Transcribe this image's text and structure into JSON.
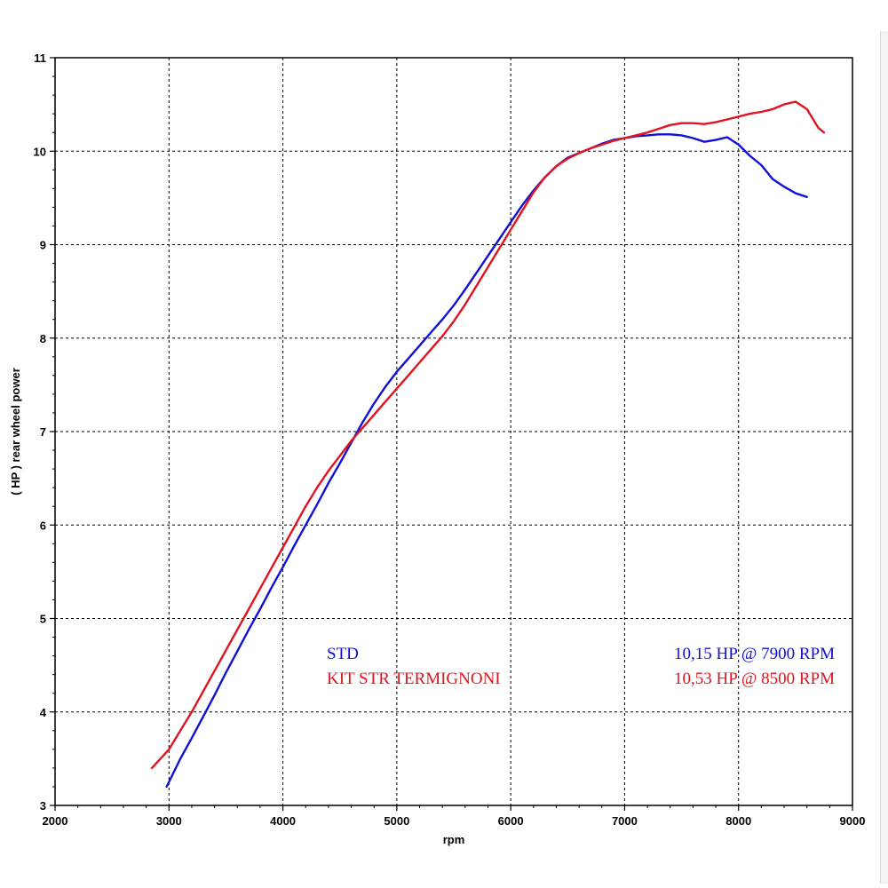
{
  "chart_data": {
    "type": "line",
    "xlabel": "rpm",
    "ylabel": "( HP )   rear wheel power",
    "xlim": [
      2000,
      9000
    ],
    "ylim": [
      3,
      11
    ],
    "x_ticks": [
      "2000",
      "3000",
      "4000",
      "5000",
      "6000",
      "7000",
      "8000",
      "9000"
    ],
    "y_ticks": [
      "3",
      "4",
      "5",
      "6",
      "7",
      "8",
      "9",
      "10",
      "11"
    ],
    "grid": true,
    "series": [
      {
        "name": "STD",
        "color": "#1010d8",
        "peak_label": "10,15 HP @ 7900 RPM",
        "points": [
          [
            2980,
            3.2
          ],
          [
            3100,
            3.5
          ],
          [
            3200,
            3.72
          ],
          [
            3300,
            3.95
          ],
          [
            3400,
            4.18
          ],
          [
            3500,
            4.42
          ],
          [
            3600,
            4.65
          ],
          [
            3700,
            4.88
          ],
          [
            3800,
            5.1
          ],
          [
            3900,
            5.33
          ],
          [
            4000,
            5.55
          ],
          [
            4100,
            5.78
          ],
          [
            4200,
            6.0
          ],
          [
            4300,
            6.22
          ],
          [
            4400,
            6.45
          ],
          [
            4500,
            6.66
          ],
          [
            4600,
            6.88
          ],
          [
            4700,
            7.1
          ],
          [
            4800,
            7.3
          ],
          [
            4900,
            7.48
          ],
          [
            5000,
            7.64
          ],
          [
            5100,
            7.78
          ],
          [
            5200,
            7.92
          ],
          [
            5300,
            8.06
          ],
          [
            5400,
            8.2
          ],
          [
            5500,
            8.35
          ],
          [
            5600,
            8.52
          ],
          [
            5700,
            8.7
          ],
          [
            5800,
            8.88
          ],
          [
            5900,
            9.06
          ],
          [
            6000,
            9.24
          ],
          [
            6100,
            9.42
          ],
          [
            6200,
            9.58
          ],
          [
            6300,
            9.72
          ],
          [
            6400,
            9.84
          ],
          [
            6500,
            9.93
          ],
          [
            6600,
            9.98
          ],
          [
            6700,
            10.03
          ],
          [
            6800,
            10.08
          ],
          [
            6900,
            10.12
          ],
          [
            7000,
            10.14
          ],
          [
            7100,
            10.16
          ],
          [
            7200,
            10.17
          ],
          [
            7300,
            10.18
          ],
          [
            7400,
            10.18
          ],
          [
            7500,
            10.17
          ],
          [
            7600,
            10.14
          ],
          [
            7700,
            10.1
          ],
          [
            7800,
            10.12
          ],
          [
            7900,
            10.15
          ],
          [
            8000,
            10.07
          ],
          [
            8100,
            9.95
          ],
          [
            8200,
            9.85
          ],
          [
            8300,
            9.7
          ],
          [
            8400,
            9.62
          ],
          [
            8500,
            9.55
          ],
          [
            8600,
            9.51
          ]
        ]
      },
      {
        "name": "KIT STR TERMIGNONI",
        "color": "#e0141e",
        "peak_label": "10,53 HP @ 8500 RPM",
        "points": [
          [
            2850,
            3.4
          ],
          [
            3000,
            3.6
          ],
          [
            3100,
            3.8
          ],
          [
            3200,
            4.0
          ],
          [
            3300,
            4.22
          ],
          [
            3400,
            4.44
          ],
          [
            3500,
            4.66
          ],
          [
            3600,
            4.88
          ],
          [
            3700,
            5.1
          ],
          [
            3800,
            5.32
          ],
          [
            3900,
            5.54
          ],
          [
            4000,
            5.76
          ],
          [
            4100,
            5.98
          ],
          [
            4200,
            6.2
          ],
          [
            4300,
            6.4
          ],
          [
            4400,
            6.58
          ],
          [
            4500,
            6.74
          ],
          [
            4600,
            6.9
          ],
          [
            4700,
            7.04
          ],
          [
            4800,
            7.18
          ],
          [
            4900,
            7.32
          ],
          [
            5000,
            7.46
          ],
          [
            5100,
            7.6
          ],
          [
            5200,
            7.74
          ],
          [
            5300,
            7.88
          ],
          [
            5400,
            8.02
          ],
          [
            5500,
            8.18
          ],
          [
            5600,
            8.36
          ],
          [
            5700,
            8.56
          ],
          [
            5800,
            8.76
          ],
          [
            5900,
            8.96
          ],
          [
            6000,
            9.16
          ],
          [
            6100,
            9.36
          ],
          [
            6200,
            9.56
          ],
          [
            6300,
            9.72
          ],
          [
            6400,
            9.84
          ],
          [
            6500,
            9.92
          ],
          [
            6600,
            9.98
          ],
          [
            6700,
            10.03
          ],
          [
            6800,
            10.07
          ],
          [
            6900,
            10.11
          ],
          [
            7000,
            10.14
          ],
          [
            7100,
            10.17
          ],
          [
            7200,
            10.2
          ],
          [
            7300,
            10.24
          ],
          [
            7400,
            10.28
          ],
          [
            7500,
            10.3
          ],
          [
            7600,
            10.3
          ],
          [
            7700,
            10.29
          ],
          [
            7800,
            10.31
          ],
          [
            7900,
            10.34
          ],
          [
            8000,
            10.37
          ],
          [
            8100,
            10.4
          ],
          [
            8200,
            10.42
          ],
          [
            8300,
            10.45
          ],
          [
            8400,
            10.5
          ],
          [
            8500,
            10.53
          ],
          [
            8600,
            10.45
          ],
          [
            8700,
            10.25
          ],
          [
            8750,
            10.2
          ]
        ]
      }
    ],
    "legend": {
      "placement": "bottom-right",
      "entries": [
        {
          "label": "STD",
          "value": "10,15 HP @ 7900 RPM",
          "color": "#1010d8"
        },
        {
          "label": "KIT STR TERMIGNONI",
          "value": "10,53 HP @ 8500 RPM",
          "color": "#e0141e"
        }
      ]
    }
  }
}
